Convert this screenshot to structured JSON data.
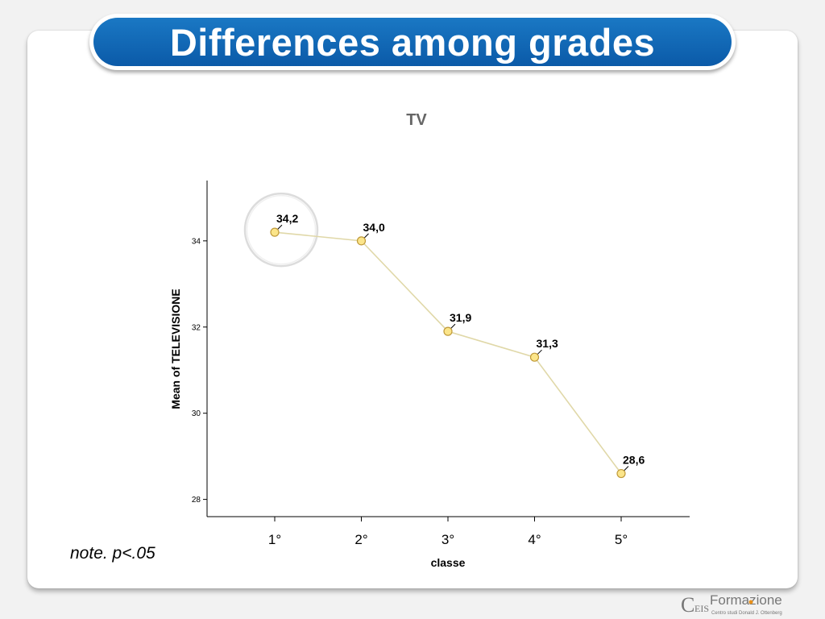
{
  "slide": {
    "title": "Differences among grades",
    "note": "note. p<.05"
  },
  "logo": {
    "brand_left": "C",
    "brand_small": "EIS",
    "brand_right": "Formazione",
    "tagline": "Centro studi Donald J. Ottenberg",
    "accent_color": "#e8901a"
  },
  "chart_data": {
    "type": "line",
    "title": "TV",
    "xlabel": "classe",
    "ylabel": "Mean of TELEVISIONE",
    "categories": [
      "1°",
      "2°",
      "3°",
      "4°",
      "5°"
    ],
    "values": [
      34.2,
      34.0,
      31.9,
      31.3,
      28.6
    ],
    "data_labels": [
      "34,2",
      "34,0",
      "31,9",
      "31,3",
      "28,6"
    ],
    "y_ticks": [
      28,
      30,
      32,
      34
    ],
    "y_tick_labels": [
      "28",
      "30",
      "32",
      "34"
    ],
    "ylim": [
      27.6,
      35.4
    ],
    "grid": false,
    "highlighted_category": "1°",
    "line_color": "#e0d8a8",
    "marker_fill": "#fbe58a",
    "marker_stroke": "#c09a3a"
  }
}
